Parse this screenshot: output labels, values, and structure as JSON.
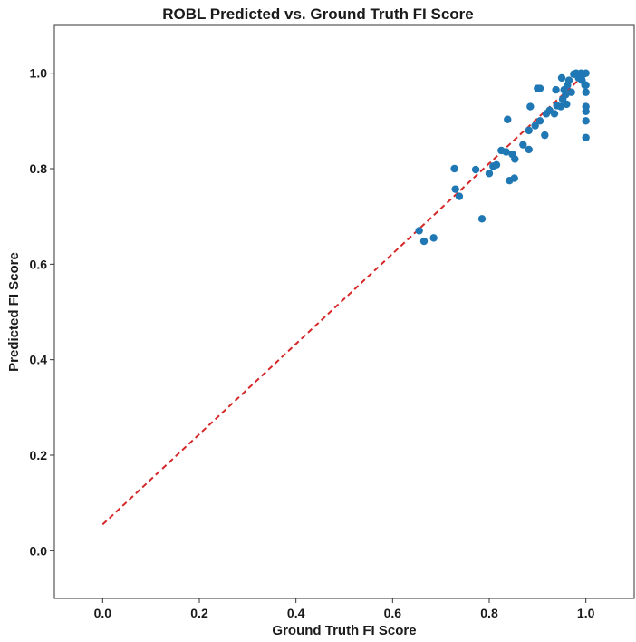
{
  "chart_data": {
    "type": "scatter",
    "title": "ROBL Predicted vs. Ground Truth FI Score",
    "xlabel": "Ground Truth FI Score",
    "ylabel": "Predicted FI Score",
    "xlim": [
      -0.1,
      1.1
    ],
    "ylim": [
      -0.1,
      1.1
    ],
    "x_ticks": [
      "0.0",
      "0.2",
      "0.4",
      "0.6",
      "0.8",
      "1.0"
    ],
    "y_ticks": [
      "0.0",
      "0.2",
      "0.4",
      "0.6",
      "0.8",
      "1.0"
    ],
    "grid": false,
    "legend": "none",
    "marker_color": "#1f77b4",
    "series": [
      {
        "points": [
          [
            0.655,
            0.67
          ],
          [
            0.665,
            0.648
          ],
          [
            0.685,
            0.655
          ],
          [
            0.728,
            0.8
          ],
          [
            0.73,
            0.757
          ],
          [
            0.738,
            0.742
          ],
          [
            0.772,
            0.798
          ],
          [
            0.785,
            0.695
          ],
          [
            0.8,
            0.79
          ],
          [
            0.808,
            0.805
          ],
          [
            0.815,
            0.808
          ],
          [
            0.825,
            0.838
          ],
          [
            0.835,
            0.835
          ],
          [
            0.838,
            0.903
          ],
          [
            0.842,
            0.775
          ],
          [
            0.848,
            0.83
          ],
          [
            0.852,
            0.78
          ],
          [
            0.853,
            0.82
          ],
          [
            0.87,
            0.85
          ],
          [
            0.882,
            0.84
          ],
          [
            0.882,
            0.88
          ],
          [
            0.885,
            0.93
          ],
          [
            0.895,
            0.89
          ],
          [
            0.9,
            0.968
          ],
          [
            0.905,
            0.968
          ],
          [
            0.905,
            0.9
          ],
          [
            0.915,
            0.87
          ],
          [
            0.918,
            0.915
          ],
          [
            0.925,
            0.922
          ],
          [
            0.935,
            0.915
          ],
          [
            0.938,
            0.965
          ],
          [
            0.94,
            0.932
          ],
          [
            0.948,
            0.93
          ],
          [
            0.95,
            0.99
          ],
          [
            0.952,
            0.945
          ],
          [
            0.955,
            0.965
          ],
          [
            0.958,
            0.955
          ],
          [
            0.96,
            0.935
          ],
          [
            0.962,
            0.975
          ],
          [
            0.965,
            0.985
          ],
          [
            0.97,
            0.96
          ],
          [
            0.975,
            0.998
          ],
          [
            0.98,
            1.0
          ],
          [
            0.985,
            0.99
          ],
          [
            0.99,
            1.0
          ],
          [
            0.992,
            0.985
          ],
          [
            0.995,
            0.998
          ],
          [
            0.998,
            0.975
          ],
          [
            1.0,
            1.0
          ],
          [
            1.0,
            0.975
          ],
          [
            1.0,
            0.96
          ],
          [
            1.0,
            0.93
          ],
          [
            1.0,
            0.92
          ],
          [
            1.0,
            0.9
          ],
          [
            1.0,
            0.865
          ]
        ]
      }
    ],
    "reference_line": {
      "x": [
        0.0,
        1.0
      ],
      "y": [
        0.055,
        1.0
      ],
      "color": "#d62728",
      "style": "dashed"
    }
  }
}
